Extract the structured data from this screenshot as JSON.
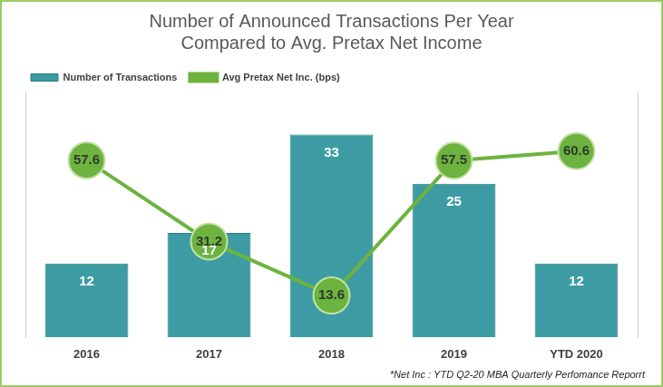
{
  "chart_data": {
    "type": "bar",
    "title": [
      "Number of Announced Transactions Per Year",
      "Compared to Avg. Pretax Net Income"
    ],
    "annotation": "*Net Inc : YTD Q2-20 MBA Quarterly Perfomance Reporrt",
    "categories": [
      "2016",
      "2017",
      "2018",
      "2019",
      "YTD 2020"
    ],
    "series": [
      {
        "name": "Number of Transactions",
        "type": "bar",
        "color": "#3d9ca3",
        "values": [
          12,
          17,
          33,
          25,
          12
        ]
      },
      {
        "name": "Avg Pretax Net Inc. (bps)",
        "type": "line",
        "color": "#6db33f",
        "marker": "circle",
        "line_style": "solid",
        "axis": "y2",
        "values": [
          57.6,
          31.2,
          13.6,
          57.5,
          60.6
        ]
      }
    ],
    "ylim": [
      0,
      40
    ],
    "y2lim": [
      0,
      80
    ],
    "grid": false,
    "legend": "top-left",
    "data_labels": true,
    "tick_labels": "x"
  }
}
